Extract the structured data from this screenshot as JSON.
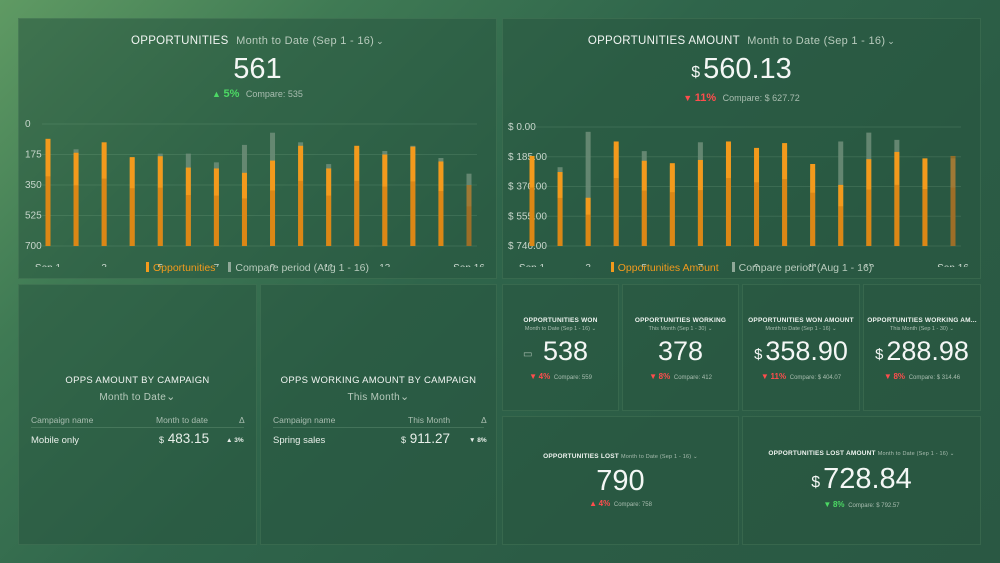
{
  "opportunities": {
    "title": "OPPORTUNITIES",
    "period": "Month to Date (Sep 1 - 16)",
    "value": "561",
    "change": "5%",
    "compare": "Compare: 535",
    "y_ticks": [
      "700",
      "525",
      "350",
      "175",
      "0"
    ],
    "x_ticks": [
      "Sep 1",
      "3",
      "5",
      "7",
      "9",
      "11",
      "13",
      "Sep 16"
    ],
    "legend_current": "Opportunities",
    "legend_compare": "Compare period (Aug 1 - 16)"
  },
  "amount": {
    "title": "OPPORTUNITIES AMOUNT",
    "period": "Month to Date (Sep 1 - 16)",
    "currency": "$",
    "value": "560.13",
    "change": "11%",
    "compare": "Compare: $ 627.72",
    "y_ticks": [
      "$ 740.00",
      "$ 555.00",
      "$ 370.00",
      "$ 185.00",
      "$ 0.00"
    ],
    "x_ticks": [
      "Sep 1",
      "3",
      "5",
      "7",
      "9",
      "11",
      "13",
      "Sep 16"
    ],
    "legend_current": "Opportunities Amount",
    "legend_compare": "Compare period (Aug 1 - 16)"
  },
  "campaign": {
    "title": "OPPS AMOUNT BY CAMPAIGN",
    "period": "Month to Date",
    "col1": "Campaign name",
    "col2": "Month to date",
    "col3": "Δ",
    "row_name": "Mobile only",
    "row_currency": "$",
    "row_value": "483.15",
    "row_change": "3%"
  },
  "working_campaign": {
    "title": "OPPS WORKING AMOUNT BY CAMPAIGN",
    "period": "This Month",
    "col1": "Campaign name",
    "col2": "This Month",
    "col3": "Δ",
    "row_name": "Spring sales",
    "row_currency": "$",
    "row_value": "911.27",
    "row_change": "8%"
  },
  "kpis": {
    "won": {
      "title": "OPPORTUNITIES WON",
      "period": "Month to Date (Sep 1 - 16)",
      "value": "538",
      "change": "4%",
      "compare": "Compare: 559"
    },
    "working": {
      "title": "OPPORTUNITIES WORKING",
      "period": "This Month (Sep 1 - 30)",
      "value": "378",
      "change": "8%",
      "compare": "Compare: 412"
    },
    "won_amount": {
      "title": "OPPORTUNITIES WON AMOUNT",
      "period": "Month to Date (Sep 1 - 16)",
      "currency": "$",
      "value": "358.90",
      "change": "11%",
      "compare": "Compare: $ 404.07"
    },
    "working_amount": {
      "title": "OPPORTUNITIES WORKING AM...",
      "period": "This Month (Sep 1 - 30)",
      "currency": "$",
      "value": "288.98",
      "change": "8%",
      "compare": "Compare: $ 314.46"
    },
    "lost": {
      "title": "OPPORTUNITIES LOST",
      "period": "Month to Date (Sep 1 - 16)",
      "value": "790",
      "change": "4%",
      "compare": "Compare: 758"
    },
    "lost_amount": {
      "title": "OPPORTUNITIES LOST AMOUNT",
      "period": "Month to Date (Sep 1 - 16)",
      "currency": "$",
      "value": "728.84",
      "change": "8%",
      "compare": "Compare: $ 792.57"
    }
  },
  "colors": {
    "current": "#f39a1c",
    "compare": "#7f9b89",
    "up": "#4cd964",
    "down": "#ff4d4d"
  },
  "chart_data": [
    {
      "type": "bar",
      "x": [
        "Sep 1",
        "2",
        "3",
        "4",
        "5",
        "6",
        "7",
        "8",
        "9",
        "10",
        "11",
        "12",
        "13",
        "14",
        "15",
        "Sep 16"
      ],
      "series": [
        {
          "name": "Opportunities",
          "values": [
            615,
            535,
            595,
            510,
            515,
            450,
            445,
            420,
            490,
            575,
            445,
            575,
            525,
            570,
            485,
            350
          ]
        },
        {
          "name": "Compare period (Aug 1 - 16)",
          "values": [
            590,
            555,
            580,
            505,
            530,
            530,
            480,
            580,
            650,
            595,
            470,
            555,
            545,
            575,
            505,
            415
          ]
        }
      ],
      "ylim": [
        0,
        700
      ],
      "y_ticks": [
        0,
        175,
        350,
        525,
        700
      ],
      "x_ticks_shown": [
        "Sep 1",
        "3",
        "5",
        "7",
        "9",
        "11",
        "13",
        "Sep 16"
      ],
      "legend": "bottom-center",
      "grid": true
    },
    {
      "type": "bar",
      "x": [
        "Sep 1",
        "2",
        "3",
        "4",
        "5",
        "6",
        "7",
        "8",
        "9",
        "10",
        "11",
        "12",
        "13",
        "14",
        "15",
        "Sep 16"
      ],
      "series": [
        {
          "name": "Opportunities Amount",
          "values": [
            560,
            460,
            300,
            650,
            530,
            515,
            535,
            650,
            610,
            640,
            510,
            380,
            540,
            585,
            545,
            560
          ]
        },
        {
          "name": "Compare period (Aug 1 - 16)",
          "values": [
            550,
            490,
            710,
            620,
            590,
            500,
            645,
            640,
            505,
            625,
            480,
            650,
            705,
            660,
            520,
            545
          ]
        }
      ],
      "ylim": [
        0,
        740
      ],
      "y_ticks": [
        0,
        185,
        370,
        555,
        740
      ],
      "x_ticks_shown": [
        "Sep 1",
        "3",
        "5",
        "7",
        "9",
        "11",
        "13",
        "Sep 16"
      ],
      "legend": "bottom-center",
      "grid": true
    }
  ]
}
